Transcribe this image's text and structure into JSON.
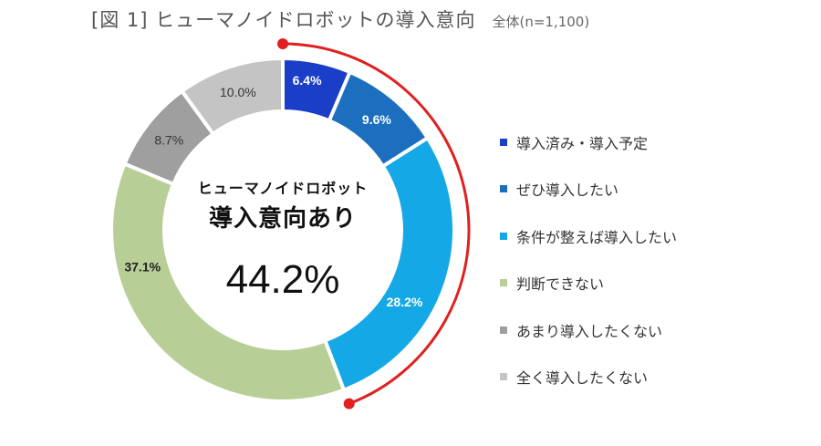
{
  "header": {
    "title": "[図 1] ヒューマノイドロボットの導入意向",
    "sample": "全体(n=1,100)"
  },
  "center": {
    "line1": "ヒューマノイドロボット",
    "line2": "導入意向あり",
    "value": "44.2%"
  },
  "legend": {
    "items": [
      {
        "label": "導入済み・導入予定",
        "color": "#1a3ec8"
      },
      {
        "label": "ぜひ導入したい",
        "color": "#1c6fbf"
      },
      {
        "label": "条件が整えば導入したい",
        "color": "#14a8e6"
      },
      {
        "label": "判断できない",
        "color": "#b7cf97"
      },
      {
        "label": "あまり導入したくない",
        "color": "#9f9f9f"
      },
      {
        "label": "全く導入したくない",
        "color": "#c4c4c4"
      }
    ]
  },
  "chart_data": {
    "type": "pie",
    "subtype": "donut",
    "title": "[図 1] ヒューマノイドロボットの導入意向",
    "subtitle": "全体(n=1,100)",
    "categories": [
      "導入済み・導入予定",
      "ぜひ導入したい",
      "条件が整えば導入したい",
      "判断できない",
      "あまり導入したくない",
      "全く導入したくない"
    ],
    "values": [
      6.4,
      9.6,
      28.2,
      37.1,
      8.7,
      10.0
    ],
    "labels": [
      "6.4%",
      "9.6%",
      "28.2%",
      "37.1%",
      "8.7%",
      "10.0%"
    ],
    "colors": [
      "#1a3ec8",
      "#1c6fbf",
      "#14a8e6",
      "#b7cf97",
      "#9f9f9f",
      "#c4c4c4"
    ],
    "label_colors": [
      "#ffffff",
      "#ffffff",
      "#ffffff",
      "#222222",
      "#333333",
      "#333333"
    ],
    "annotation": {
      "text": "ヒューマノイドロボット 導入意向あり 44.2%",
      "value": 44.2,
      "bracket_color": "#e02020"
    },
    "legend_position": "right",
    "unit": "%"
  }
}
